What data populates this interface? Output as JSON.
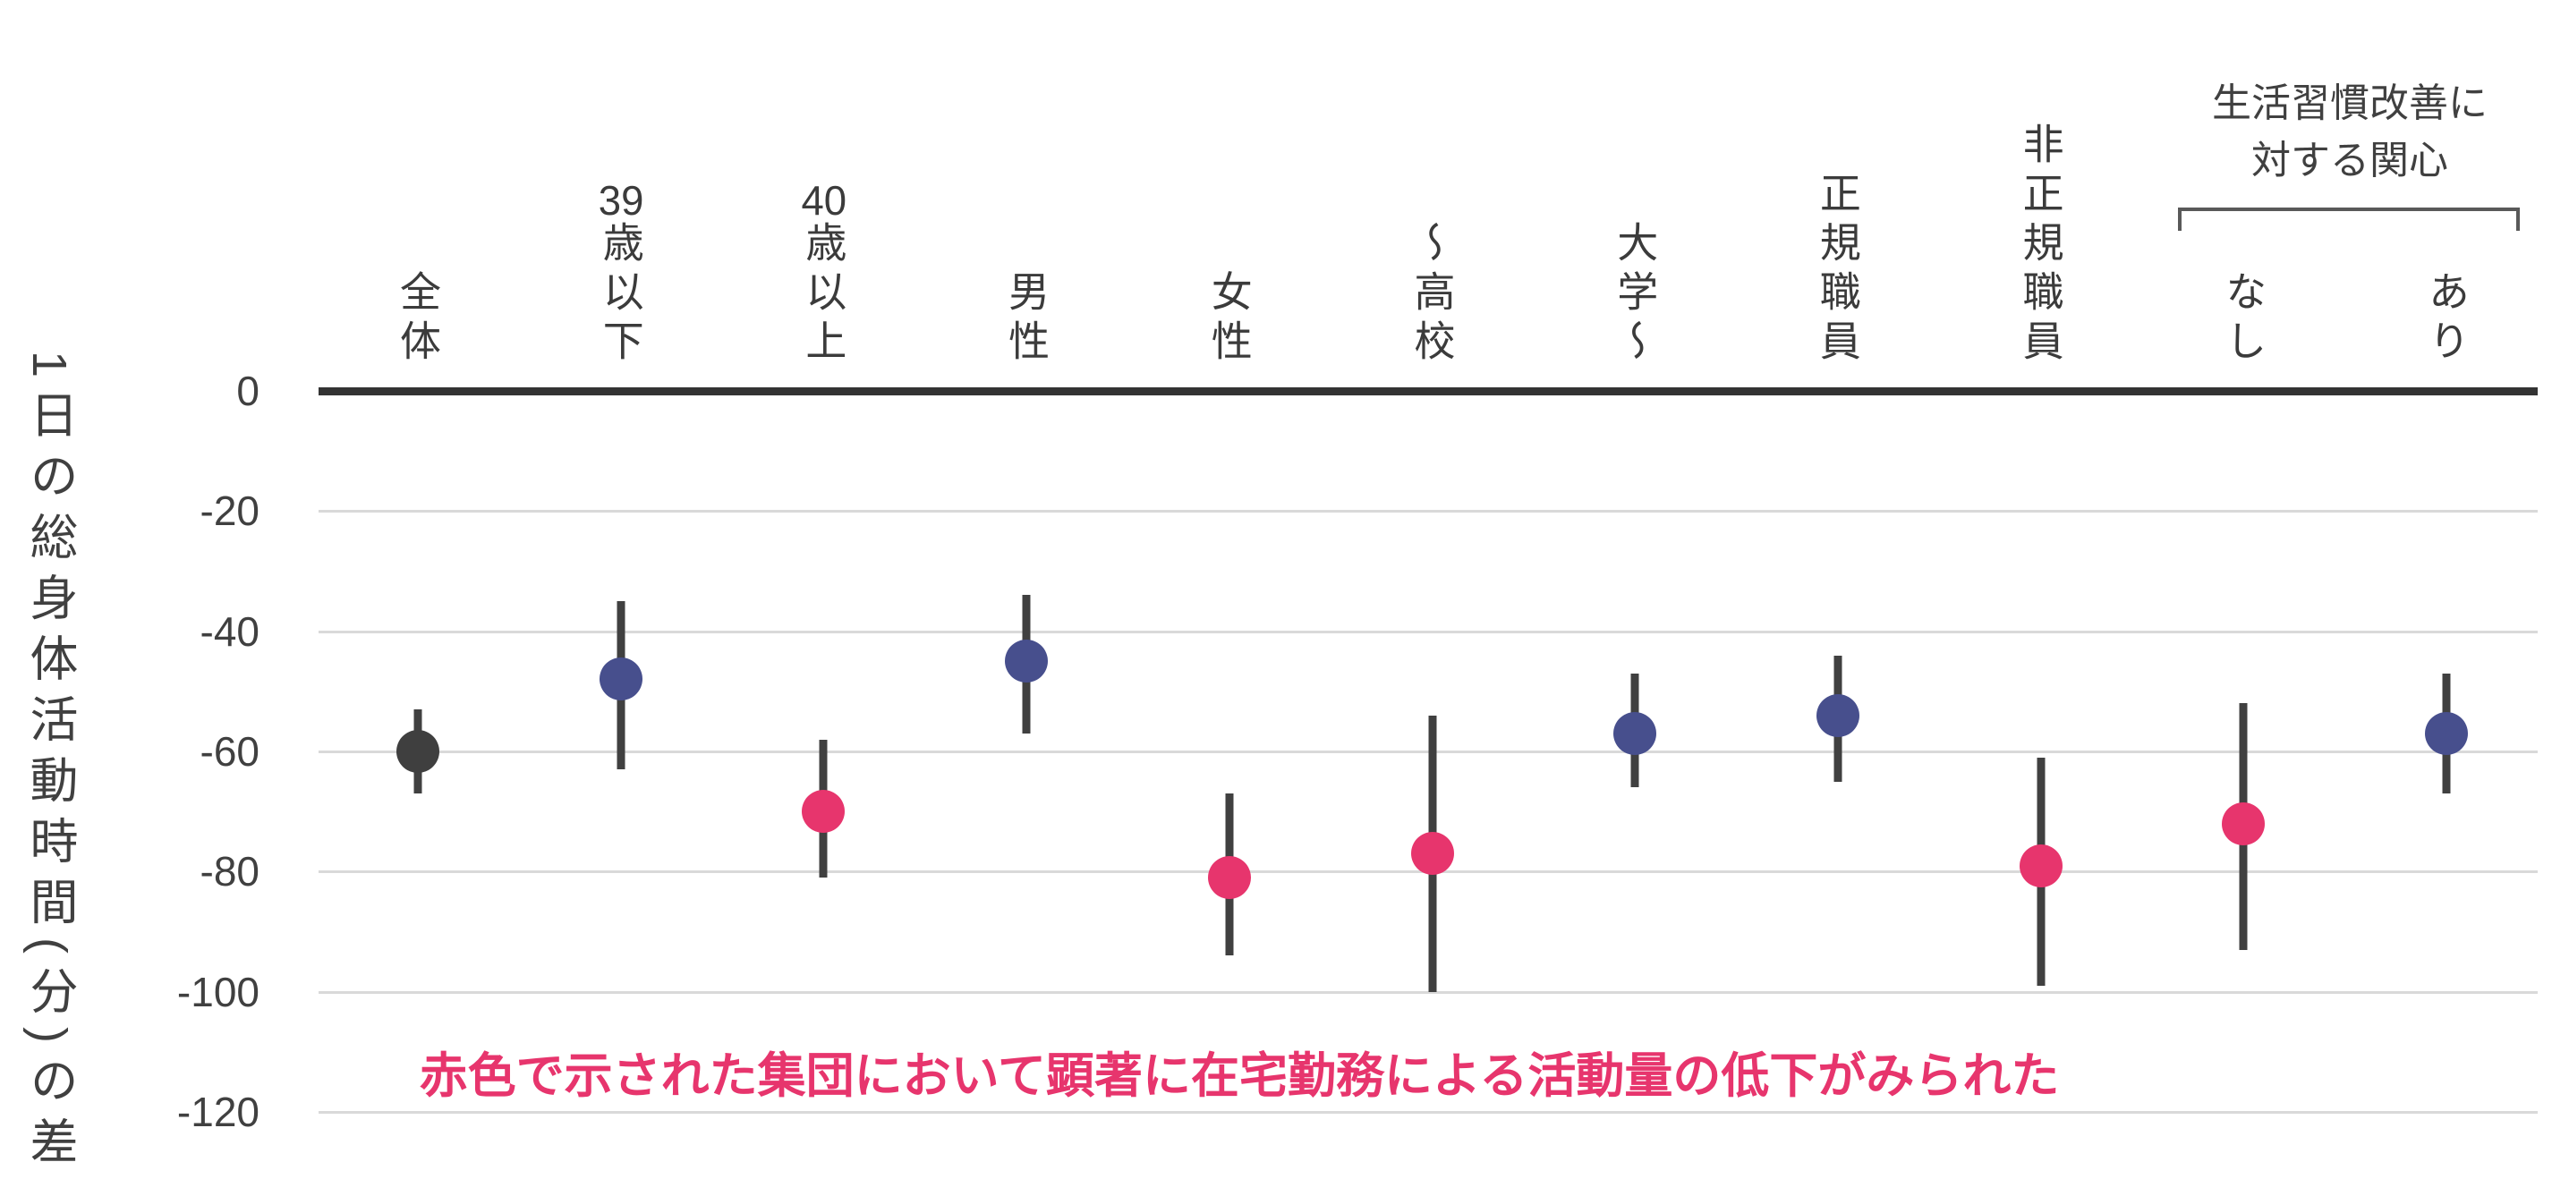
{
  "chart_data": {
    "type": "scatter",
    "title": "",
    "ylabel": "1日の総身体活動時間(分)の差",
    "xlabel": "",
    "y_ticks": [
      0,
      -20,
      -40,
      -60,
      -80,
      -100,
      -120
    ],
    "ylim": [
      -130,
      0
    ],
    "grid": true,
    "legend": "none",
    "group_bracket_label": "生活習慣改善に対する関心",
    "group_bracket_categories": [
      "なし",
      "あり"
    ],
    "annotation": "赤色で示された集団において顕著に在宅勤務による活動量の低下がみられた",
    "colors": {
      "gray": "#3f3f3f",
      "navy": "#474f8d",
      "pink": "#e7356d",
      "errorbar": "#404040",
      "gridline": "#d9d9d9",
      "zeroline": "#333333",
      "annotation": "#e7356d"
    },
    "series": [
      {
        "label": "全体",
        "color": "gray",
        "value": -60,
        "ci_high": -53,
        "ci_low": -67
      },
      {
        "label": "39歳以下",
        "color": "navy",
        "value": -48,
        "ci_high": -35,
        "ci_low": -63
      },
      {
        "label": "40歳以上",
        "color": "pink",
        "value": -70,
        "ci_high": -58,
        "ci_low": -81
      },
      {
        "label": "男性",
        "color": "navy",
        "value": -45,
        "ci_high": -34,
        "ci_low": -57
      },
      {
        "label": "女性",
        "color": "pink",
        "value": -81,
        "ci_high": -67,
        "ci_low": -94
      },
      {
        "label": "〜高校",
        "color": "pink",
        "value": -77,
        "ci_high": -54,
        "ci_low": -100
      },
      {
        "label": "大学〜",
        "color": "navy",
        "value": -57,
        "ci_high": -47,
        "ci_low": -66
      },
      {
        "label": "正規職員",
        "color": "navy",
        "value": -54,
        "ci_high": -44,
        "ci_low": -65
      },
      {
        "label": "非正規職員",
        "color": "pink",
        "value": -79,
        "ci_high": -61,
        "ci_low": -99
      },
      {
        "label": "なし",
        "color": "pink",
        "value": -72,
        "ci_high": -52,
        "ci_low": -93
      },
      {
        "label": "あり",
        "color": "navy",
        "value": -57,
        "ci_high": -47,
        "ci_low": -67
      }
    ]
  }
}
